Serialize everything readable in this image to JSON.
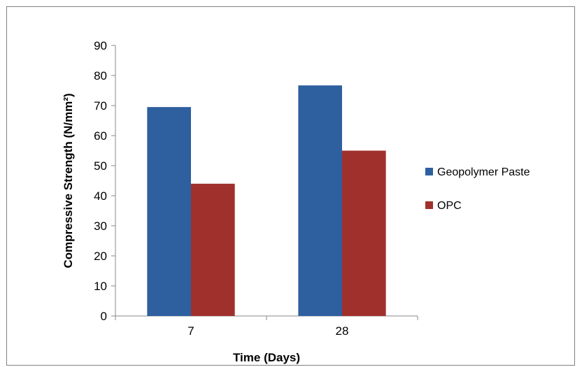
{
  "chart_data": {
    "type": "bar",
    "categories": [
      "7",
      "28"
    ],
    "series": [
      {
        "name": "Geopolymer Paste",
        "values": [
          69.5,
          76.7
        ],
        "color": "#2e5f9f"
      },
      {
        "name": "OPC",
        "values": [
          44.0,
          55.0
        ],
        "color": "#a0302c"
      }
    ],
    "title": "",
    "xlabel": "Time (Days)",
    "ylabel": "Compressive Strength (N/mm²)",
    "ylim": [
      0,
      90
    ],
    "yticks": [
      "0",
      "10",
      "20",
      "30",
      "40",
      "50",
      "60",
      "70",
      "80",
      "90"
    ],
    "grid": false,
    "legend_position": "right"
  }
}
